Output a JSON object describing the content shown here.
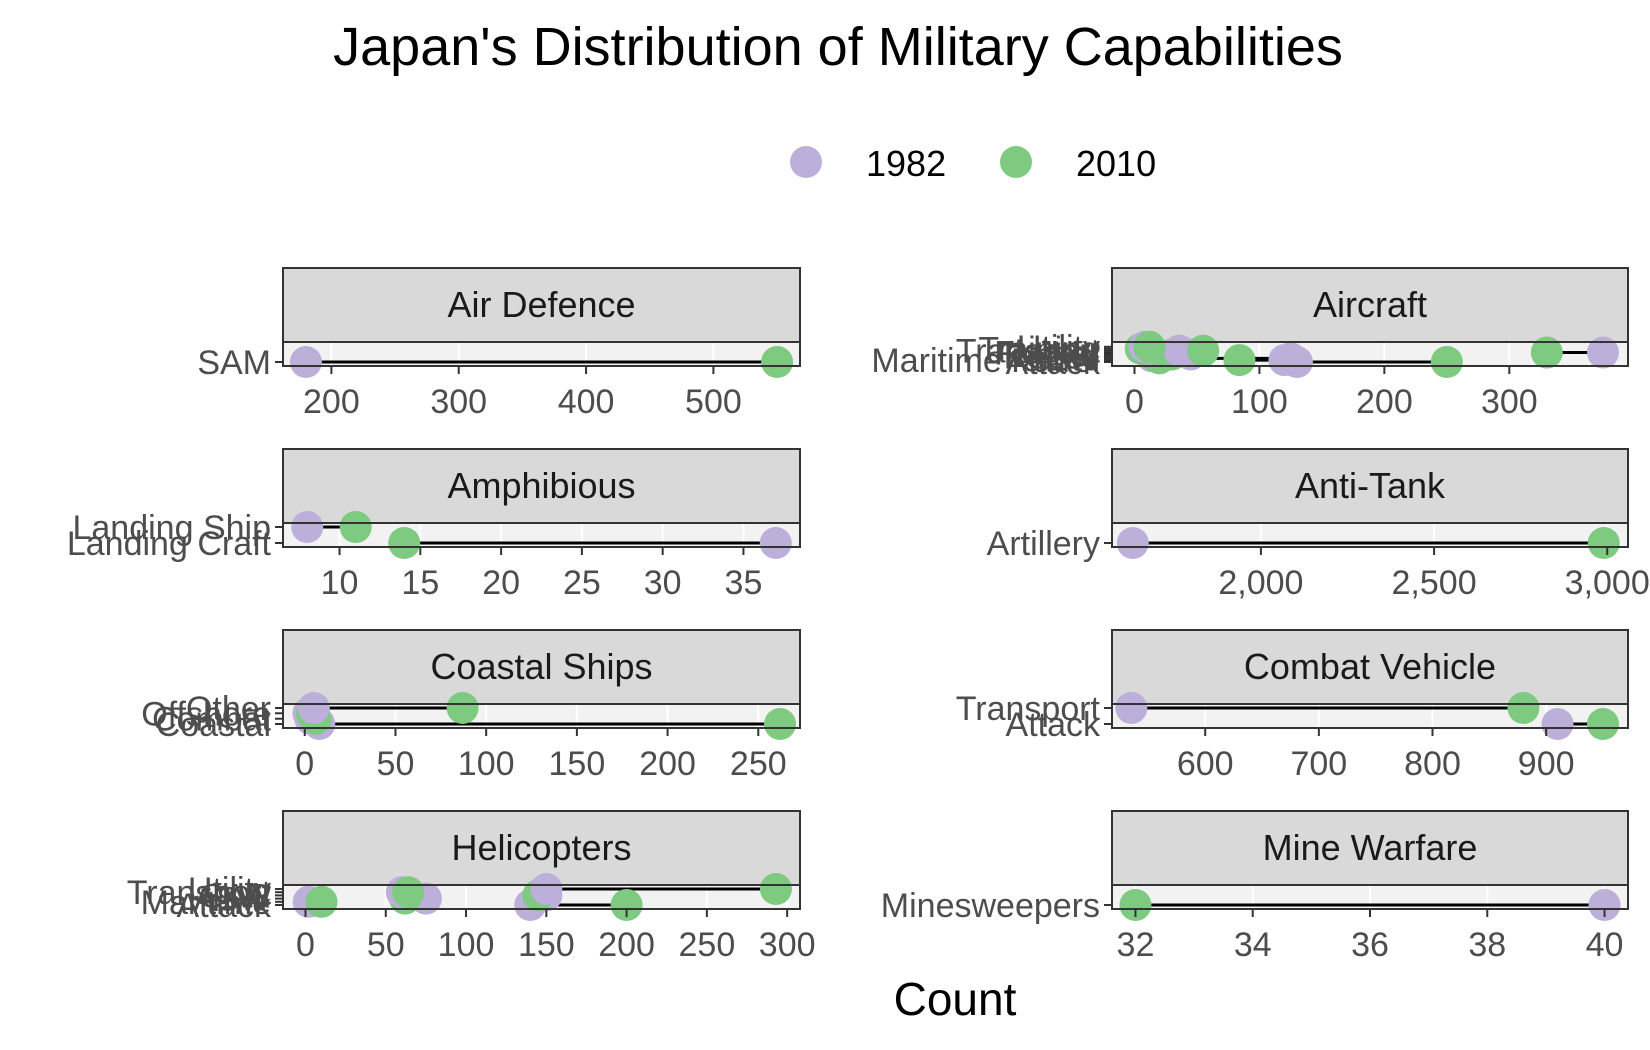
{
  "chart_data": {
    "type": "scatter",
    "title": "Japan's Distribution of Military Capabilities",
    "xlabel": "Count",
    "ylabel": "",
    "legend_position": "top",
    "grid": true,
    "colors": {
      "1982": "#bcafda",
      "2010": "#7dca80"
    },
    "series": [
      {
        "name": "1982"
      },
      {
        "name": "2010"
      }
    ],
    "panels": [
      {
        "name": "Air Defence",
        "xlim": [
          162,
          568
        ],
        "ticks": [
          "200",
          "300",
          "400",
          "500"
        ],
        "tick_values": [
          200,
          300,
          400,
          500
        ],
        "categories": [
          "SAM"
        ],
        "category_pos": [
          0
        ],
        "points": [
          {
            "category": "SAM",
            "y": 0,
            "v1982": 180,
            "v2010": 550
          }
        ]
      },
      {
        "name": "Aircraft",
        "xlim": [
          -18,
          395
        ],
        "ticks": [
          "0",
          "100",
          "200",
          "300"
        ],
        "tick_values": [
          0,
          100,
          200,
          300
        ],
        "categories": [
          "Maritime Patrol",
          "Attack",
          "AEW",
          "Recce",
          "Tanker",
          "Fighter",
          "Transport",
          "Training",
          "Utility"
        ],
        "category_pos": [
          0.12,
          0.0,
          0.23,
          0.35,
          0.47,
          0.59,
          0.71,
          0.83,
          0.95
        ],
        "points": [
          {
            "category": "Maritime Patrol",
            "y": 0.12,
            "v1982": 120,
            "v2010": 84
          },
          {
            "category": "Attack",
            "y": 0.0,
            "v1982": 130,
            "v2010": 250
          },
          {
            "category": "AEW",
            "y": 0.23,
            "v1982": 125,
            "v2010": 20
          },
          {
            "category": "Recce",
            "y": 0.35,
            "v1982": 14,
            "v2010": 17
          },
          {
            "category": "Tanker",
            "y": 0.47,
            "v1982": 45,
            "v2010": 30
          },
          {
            "category": "Fighter",
            "y": 0.59,
            "v1982": 375,
            "v2010": 330
          },
          {
            "category": "Transport",
            "y": 0.71,
            "v1982": 36,
            "v2010": 55
          },
          {
            "category": "Training",
            "y": 0.83,
            "v1982": 10,
            "v2010": 5
          },
          {
            "category": "Utility",
            "y": 0.95,
            "v1982": 8,
            "v2010": 12
          }
        ]
      },
      {
        "name": "Amphibious",
        "xlim": [
          6.5,
          38.5
        ],
        "ticks": [
          "10",
          "15",
          "20",
          "25",
          "30",
          "35"
        ],
        "tick_values": [
          10,
          15,
          20,
          25,
          30,
          35
        ],
        "categories": [
          "Landing Craft",
          "Landing Ship"
        ],
        "category_pos": [
          0,
          1
        ],
        "points": [
          {
            "category": "Landing Craft",
            "y": 0,
            "v1982": 37,
            "v2010": 14
          },
          {
            "category": "Landing Ship",
            "y": 1,
            "v1982": 8,
            "v2010": 11
          }
        ]
      },
      {
        "name": "Anti-Tank",
        "xlim": [
          1570,
          3060
        ],
        "ticks": [
          "2,000",
          "2,500",
          "3,000"
        ],
        "tick_values": [
          2000,
          2500,
          3000
        ],
        "categories": [
          "Artillery"
        ],
        "category_pos": [
          0
        ],
        "points": [
          {
            "category": "Artillery",
            "y": 0,
            "v1982": 1630,
            "v2010": 2990
          }
        ]
      },
      {
        "name": "Coastal Ships",
        "xlim": [
          -12,
          273
        ],
        "ticks": [
          "0",
          "50",
          "100",
          "150",
          "200",
          "250"
        ],
        "tick_values": [
          0,
          50,
          100,
          150,
          200,
          250
        ],
        "categories": [
          "Coastal",
          "Combat",
          "Offshore",
          "Other"
        ],
        "category_pos": [
          0,
          0.33,
          0.67,
          1
        ],
        "points": [
          {
            "category": "Coastal",
            "y": 0,
            "v1982": 8,
            "v2010": 262
          },
          {
            "category": "Combat",
            "y": 0.33,
            "v1982": 3,
            "v2010": 6
          },
          {
            "category": "Offshore",
            "y": 0.67,
            "v1982": 2,
            "v2010": 4
          },
          {
            "category": "Other",
            "y": 1,
            "v1982": 5,
            "v2010": 87
          }
        ]
      },
      {
        "name": "Combat Vehicle",
        "xlim": [
          518,
          972
        ],
        "ticks": [
          "600",
          "700",
          "800",
          "900"
        ],
        "tick_values": [
          600,
          700,
          800,
          900
        ],
        "categories": [
          "Attack",
          "Transport"
        ],
        "category_pos": [
          0,
          1
        ],
        "points": [
          {
            "category": "Attack",
            "y": 0,
            "v1982": 910,
            "v2010": 950
          },
          {
            "category": "Transport",
            "y": 1,
            "v1982": 535,
            "v2010": 880
          }
        ]
      },
      {
        "name": "Helicopters",
        "xlim": [
          -14,
          308
        ],
        "ticks": [
          "0",
          "50",
          "100",
          "150",
          "200",
          "250",
          "300"
        ],
        "tick_values": [
          0,
          50,
          100,
          150,
          200,
          250,
          300
        ],
        "categories": [
          "Attack",
          "Maritime",
          "ASW",
          "SAR",
          "Transport",
          "Utility"
        ],
        "category_pos": [
          0,
          0.2,
          0.4,
          0.6,
          0.8,
          1
        ],
        "points": [
          {
            "category": "Attack",
            "y": 0,
            "v1982": 140,
            "v2010": 200
          },
          {
            "category": "Maritime",
            "y": 0.2,
            "v1982": 2,
            "v2010": 10
          },
          {
            "category": "ASW",
            "y": 0.4,
            "v1982": 75,
            "v2010": 62
          },
          {
            "category": "SAR",
            "y": 0.6,
            "v1982": 150,
            "v2010": 145
          },
          {
            "category": "Transport",
            "y": 0.8,
            "v1982": 60,
            "v2010": 64
          },
          {
            "category": "Utility",
            "y": 1,
            "v1982": 150,
            "v2010": 293
          }
        ]
      },
      {
        "name": "Mine Warfare",
        "xlim": [
          31.6,
          40.4
        ],
        "ticks": [
          "32",
          "34",
          "36",
          "38",
          "40"
        ],
        "tick_values": [
          32,
          34,
          36,
          38,
          40
        ],
        "categories": [
          "Minesweepers"
        ],
        "category_pos": [
          0
        ],
        "points": [
          {
            "category": "Minesweepers",
            "y": 0,
            "v1982": 40,
            "v2010": 32
          }
        ]
      }
    ]
  }
}
